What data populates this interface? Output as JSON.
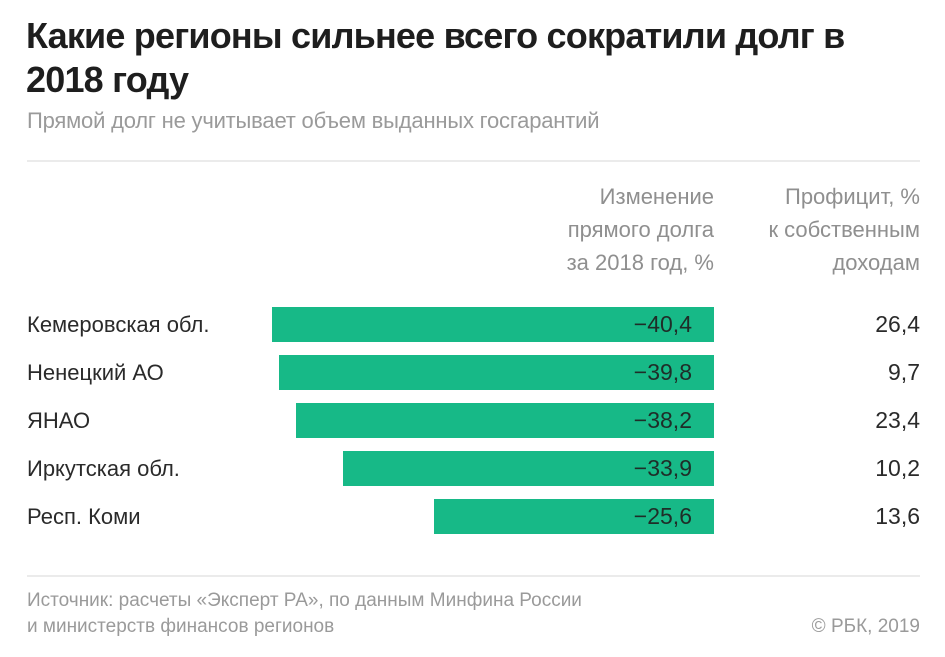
{
  "header": {
    "title": "Какие регионы сильнее всего сократили долг в 2018 году",
    "subtitle": "Прямой долг не учитывает объем выданных госгарантий"
  },
  "columns": {
    "change_header": "Изменение\nпрямого долга\nза 2018 год, %",
    "surplus_header": "Профицит, %\nк собственным\nдоходам"
  },
  "colors": {
    "bar": "#17b987",
    "title": "#1e1e1e",
    "muted": "#9a9a9a"
  },
  "chart_data": {
    "type": "bar",
    "orientation": "horizontal",
    "title": "Какие регионы сильнее всего сократили долг в 2018 году",
    "subtitle": "Прямой долг не учитывает объем выданных госгарантий",
    "categories": [
      "Кемеровская обл.",
      "Ненецкий АО",
      "ЯНАО",
      "Иркутская обл.",
      "Респ. Коми"
    ],
    "series": [
      {
        "name": "Изменение прямого долга за 2018 год, %",
        "values": [
          -40.4,
          -39.8,
          -38.2,
          -33.9,
          -25.6
        ],
        "labels": [
          "−40,4",
          "−39,8",
          "−38,2",
          "−33,9",
          "−25,6"
        ]
      },
      {
        "name": "Профицит, % к собственным доходам",
        "values": [
          26.4,
          9.7,
          23.4,
          10.2,
          13.6
        ],
        "labels": [
          "26,4",
          "9,7",
          "23,4",
          "10,2",
          "13,6"
        ]
      }
    ],
    "xlim": [
      -40.4,
      0
    ],
    "grid": false,
    "legend": "none"
  },
  "footer": {
    "source": "Источник: расчеты «Эксперт РА», по данным Минфина России\nи министерств финансов регионов",
    "copyright": "© РБК, 2019"
  }
}
